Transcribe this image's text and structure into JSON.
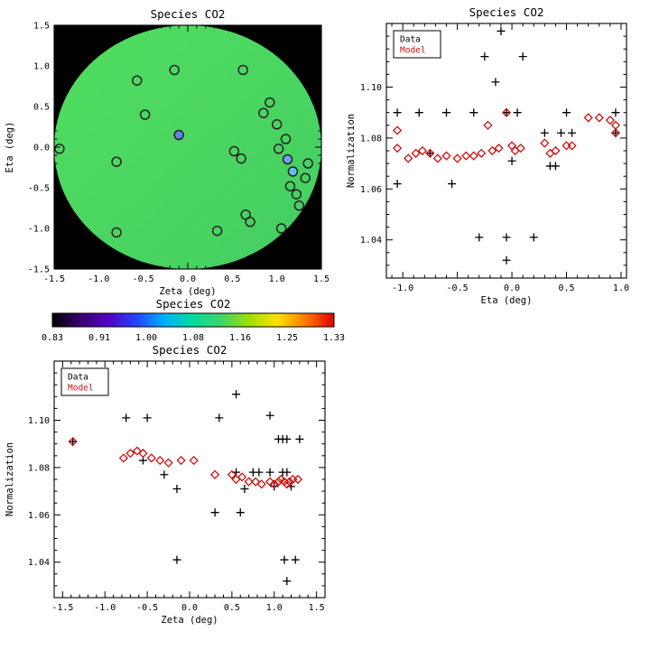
{
  "window": {
    "background": "#ffffff"
  },
  "colors": {
    "axis": "#000000",
    "data_series": "#000000",
    "model_series": "#cc1111",
    "map_background": "#000000",
    "disk_gradient": [
      "#52dd60",
      "#43ce62"
    ],
    "point_outline": "#222222"
  },
  "chart_data": [
    {
      "id": "map",
      "type": "scatter_map",
      "title": "Species CO2",
      "xlabel": "Zeta (deg)",
      "ylabel": "Eta (deg)",
      "xlim": [
        -1.5,
        1.5
      ],
      "ylim": [
        -1.5,
        1.5
      ],
      "xticks": [
        "-1.5",
        "-1.0",
        "-0.5",
        "0.0",
        "0.5",
        "1.0",
        "1.5"
      ],
      "yticks": [
        "-1.5",
        "-1.0",
        "-0.5",
        "0.0",
        "0.5",
        "1.0",
        "1.5"
      ],
      "disk_radius": 1.5,
      "points": [
        {
          "x": -1.44,
          "y": -0.02
        },
        {
          "x": -0.8,
          "y": -0.18
        },
        {
          "x": -0.8,
          "y": -1.05
        },
        {
          "x": -0.57,
          "y": 0.82
        },
        {
          "x": -0.48,
          "y": 0.4
        },
        {
          "x": -0.15,
          "y": 0.95
        },
        {
          "x": -0.1,
          "y": 0.15,
          "fill": "#5b86e0"
        },
        {
          "x": 0.33,
          "y": -1.03
        },
        {
          "x": 0.52,
          "y": -0.05
        },
        {
          "x": 0.6,
          "y": -0.14
        },
        {
          "x": 0.62,
          "y": 0.95
        },
        {
          "x": 0.65,
          "y": -0.83
        },
        {
          "x": 0.7,
          "y": -0.92
        },
        {
          "x": 0.85,
          "y": 0.42
        },
        {
          "x": 0.92,
          "y": 0.55
        },
        {
          "x": 1.0,
          "y": 0.28
        },
        {
          "x": 1.02,
          "y": -0.02
        },
        {
          "x": 1.1,
          "y": 0.1
        },
        {
          "x": 1.12,
          "y": -0.15,
          "fill": "#6fa3e8"
        },
        {
          "x": 1.18,
          "y": -0.3,
          "fill": "#59c4ea"
        },
        {
          "x": 1.15,
          "y": -0.48
        },
        {
          "x": 1.22,
          "y": -0.58
        },
        {
          "x": 1.25,
          "y": -0.72
        },
        {
          "x": 1.32,
          "y": -0.38
        },
        {
          "x": 1.35,
          "y": -0.2
        },
        {
          "x": 1.05,
          "y": -1.0
        }
      ]
    },
    {
      "id": "eta_norm",
      "type": "scatter",
      "title": "Species CO2",
      "xlabel": "Eta (deg)",
      "ylabel": "Normalization",
      "xlim": [
        -1.15,
        1.05
      ],
      "ylim": [
        1.025,
        1.125
      ],
      "xticks": [
        "-1.0",
        "-0.5",
        "0.0",
        "0.5",
        "1.0"
      ],
      "yticks": [
        "1.04",
        "1.06",
        "1.08",
        "1.10"
      ],
      "legend": {
        "entries": [
          {
            "label": "Data",
            "color": "#000000"
          },
          {
            "label": "Model",
            "color": "#cc1111"
          }
        ]
      },
      "series": [
        {
          "name": "Data",
          "marker": "plus",
          "color": "#000000",
          "points": [
            [
              -1.05,
              1.09
            ],
            [
              -1.05,
              1.062
            ],
            [
              -0.85,
              1.09
            ],
            [
              -0.75,
              1.074
            ],
            [
              -0.6,
              1.09
            ],
            [
              -0.55,
              1.062
            ],
            [
              -0.35,
              1.09
            ],
            [
              -0.3,
              1.041
            ],
            [
              -0.25,
              1.112
            ],
            [
              -0.15,
              1.102
            ],
            [
              -0.1,
              1.122
            ],
            [
              -0.05,
              1.09
            ],
            [
              -0.05,
              1.041
            ],
            [
              -0.05,
              1.032
            ],
            [
              0.0,
              1.071
            ],
            [
              0.05,
              1.09
            ],
            [
              0.1,
              1.112
            ],
            [
              0.2,
              1.041
            ],
            [
              0.3,
              1.082
            ],
            [
              0.35,
              1.069
            ],
            [
              0.4,
              1.069
            ],
            [
              0.45,
              1.082
            ],
            [
              0.5,
              1.09
            ],
            [
              0.55,
              1.082
            ],
            [
              0.95,
              1.09
            ],
            [
              0.95,
              1.082
            ]
          ]
        },
        {
          "name": "Model",
          "marker": "diamond",
          "color": "#cc1111",
          "points": [
            [
              -1.05,
              1.083
            ],
            [
              -1.05,
              1.076
            ],
            [
              -0.95,
              1.072
            ],
            [
              -0.88,
              1.074
            ],
            [
              -0.82,
              1.075
            ],
            [
              -0.75,
              1.074
            ],
            [
              -0.68,
              1.072
            ],
            [
              -0.6,
              1.073
            ],
            [
              -0.5,
              1.072
            ],
            [
              -0.42,
              1.073
            ],
            [
              -0.35,
              1.073
            ],
            [
              -0.28,
              1.074
            ],
            [
              -0.22,
              1.085
            ],
            [
              -0.18,
              1.075
            ],
            [
              -0.12,
              1.076
            ],
            [
              -0.05,
              1.09
            ],
            [
              0.0,
              1.077
            ],
            [
              0.03,
              1.075
            ],
            [
              0.08,
              1.076
            ],
            [
              0.3,
              1.078
            ],
            [
              0.35,
              1.074
            ],
            [
              0.4,
              1.075
            ],
            [
              0.5,
              1.077
            ],
            [
              0.55,
              1.077
            ],
            [
              0.7,
              1.088
            ],
            [
              0.8,
              1.088
            ],
            [
              0.9,
              1.087
            ],
            [
              0.95,
              1.085
            ],
            [
              0.95,
              1.082
            ]
          ]
        }
      ]
    },
    {
      "id": "colorbar",
      "type": "colorbar",
      "title": "Species CO2",
      "tick_labels": [
        "0.83",
        "0.91",
        "1.00",
        "1.08",
        "1.16",
        "1.25",
        "1.33"
      ],
      "stops": [
        "#000000",
        "#3a0070",
        "#5500c8",
        "#2244ff",
        "#00b4ff",
        "#00dd9a",
        "#3ed46a",
        "#9fe000",
        "#ffe000",
        "#ff7800",
        "#dd0000"
      ]
    },
    {
      "id": "zeta_norm",
      "type": "scatter",
      "title": "Species CO2",
      "xlabel": "Zeta (deg)",
      "ylabel": "Normalization",
      "xlim": [
        -1.6,
        1.6
      ],
      "ylim": [
        1.025,
        1.125
      ],
      "xticks": [
        "-1.5",
        "-1.0",
        "-0.5",
        "0.0",
        "0.5",
        "1.0",
        "1.5"
      ],
      "yticks": [
        "1.04",
        "1.06",
        "1.08",
        "1.10"
      ],
      "legend": {
        "entries": [
          {
            "label": "Data",
            "color": "#000000"
          },
          {
            "label": "Model",
            "color": "#cc1111"
          }
        ]
      },
      "series": [
        {
          "name": "Data",
          "marker": "plus",
          "color": "#000000",
          "points": [
            [
              -1.38,
              1.091
            ],
            [
              -0.75,
              1.101
            ],
            [
              -0.55,
              1.083
            ],
            [
              -0.5,
              1.101
            ],
            [
              -0.3,
              1.077
            ],
            [
              -0.15,
              1.071
            ],
            [
              -0.15,
              1.041
            ],
            [
              0.3,
              1.061
            ],
            [
              0.35,
              1.101
            ],
            [
              0.55,
              1.111
            ],
            [
              0.55,
              1.078
            ],
            [
              0.6,
              1.061
            ],
            [
              0.65,
              1.071
            ],
            [
              0.75,
              1.078
            ],
            [
              0.82,
              1.078
            ],
            [
              0.95,
              1.102
            ],
            [
              0.95,
              1.078
            ],
            [
              1.0,
              1.072
            ],
            [
              1.05,
              1.092
            ],
            [
              1.1,
              1.092
            ],
            [
              1.15,
              1.092
            ],
            [
              1.1,
              1.078
            ],
            [
              1.15,
              1.078
            ],
            [
              1.2,
              1.072
            ],
            [
              1.12,
              1.041
            ],
            [
              1.25,
              1.041
            ],
            [
              1.15,
              1.032
            ],
            [
              1.3,
              1.092
            ]
          ]
        },
        {
          "name": "Model",
          "marker": "diamond",
          "color": "#cc1111",
          "points": [
            [
              -1.38,
              1.091
            ],
            [
              -0.78,
              1.084
            ],
            [
              -0.7,
              1.086
            ],
            [
              -0.62,
              1.087
            ],
            [
              -0.55,
              1.086
            ],
            [
              -0.45,
              1.084
            ],
            [
              -0.35,
              1.083
            ],
            [
              -0.25,
              1.082
            ],
            [
              -0.1,
              1.083
            ],
            [
              0.05,
              1.083
            ],
            [
              0.3,
              1.077
            ],
            [
              0.5,
              1.077
            ],
            [
              0.55,
              1.075
            ],
            [
              0.62,
              1.076
            ],
            [
              0.7,
              1.074
            ],
            [
              0.78,
              1.074
            ],
            [
              0.85,
              1.073
            ],
            [
              0.95,
              1.074
            ],
            [
              1.0,
              1.073
            ],
            [
              1.05,
              1.074
            ],
            [
              1.08,
              1.075
            ],
            [
              1.12,
              1.074
            ],
            [
              1.15,
              1.073
            ],
            [
              1.18,
              1.074
            ],
            [
              1.22,
              1.075
            ],
            [
              1.28,
              1.075
            ]
          ]
        }
      ]
    }
  ]
}
